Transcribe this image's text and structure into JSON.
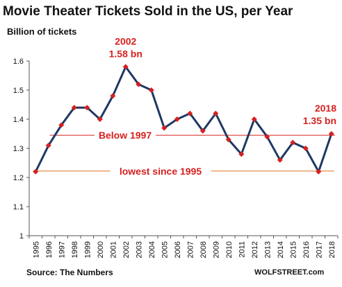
{
  "chart_data": {
    "type": "line",
    "title": "Movie Theater Tickets Sold in the US, per Year",
    "ylabel": "Billion of tickets",
    "xlabel": "",
    "x": [
      "1995",
      "1996",
      "1997",
      "1998",
      "1999",
      "2000",
      "2001",
      "2002",
      "2003",
      "2004",
      "2005",
      "2006",
      "2007",
      "2008",
      "2009",
      "2010",
      "2011",
      "2012",
      "2013",
      "2014",
      "2015",
      "2016",
      "2017",
      "2018"
    ],
    "series": [
      {
        "values": [
          1.22,
          1.31,
          1.38,
          1.44,
          1.44,
          1.4,
          1.48,
          1.58,
          1.52,
          1.5,
          1.37,
          1.4,
          1.42,
          1.36,
          1.42,
          1.33,
          1.28,
          1.4,
          1.34,
          1.26,
          1.32,
          1.3,
          1.22,
          1.35
        ]
      }
    ],
    "ylim": [
      1.0,
      1.6
    ],
    "yticks": [
      "1",
      "1.1",
      "1.2",
      "1.3",
      "1.4",
      "1.5",
      "1.6"
    ],
    "reference_lines": [
      {
        "label": "Below 1997",
        "value": 1.345,
        "color": "#d62020"
      },
      {
        "label": "lowest since 1995",
        "value": 1.222,
        "color": "#e07020"
      }
    ],
    "annotations": [
      {
        "year": "2002",
        "value": "1.58 bn"
      },
      {
        "year": "2018",
        "value": "1.35 bn"
      }
    ],
    "line_color": "#1f3864",
    "marker_color": "#d62020",
    "grid": false,
    "legend": "none"
  },
  "source": "Source: The Numbers",
  "brand": "WOLFSTREET.com"
}
